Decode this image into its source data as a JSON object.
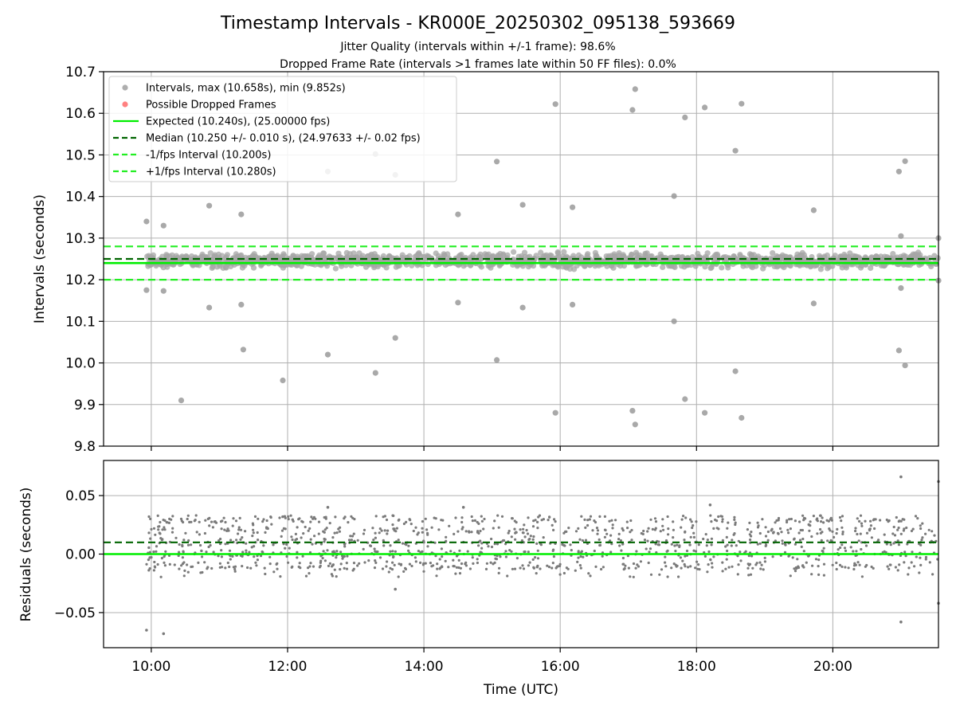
{
  "chart_data": [
    {
      "type": "scatter",
      "title": "Timestamp Intervals - KR000E_20250302_095138_593669",
      "subtitle_lines": [
        "Jitter Quality (intervals within +/-1 frame): 98.6%",
        "Dropped Frame Rate (intervals >1 frames late within 50 FF files): 0.0%"
      ],
      "ylabel": "Intervals (seconds)",
      "xlim_hours": [
        9.3,
        21.55
      ],
      "ylim": [
        9.8,
        10.7
      ],
      "yticks": [
        "9.8",
        "9.9",
        "10.0",
        "10.1",
        "10.2",
        "10.3",
        "10.4",
        "10.5",
        "10.6",
        "10.7"
      ],
      "ytick_values": [
        9.8,
        9.9,
        10.0,
        10.1,
        10.2,
        10.3,
        10.4,
        10.5,
        10.6,
        10.7
      ],
      "grid": true,
      "legend_position": "top-left",
      "legend": [
        {
          "label": "Intervals, max (10.658s), min (9.852s)",
          "style": "marker",
          "color": "#a0a0a0"
        },
        {
          "label": "Possible Dropped Frames",
          "style": "marker",
          "color": "#ff6b6b"
        },
        {
          "label": "Expected (10.240s), (25.00000 fps)",
          "style": "solid",
          "color": "#00ee00"
        },
        {
          "label": "Median (10.250 +/- 0.010 s), (24.97633 +/- 0.02 fps)",
          "style": "dashed",
          "color": "#006400"
        },
        {
          "label": "-1/fps Interval (10.200s)",
          "style": "dashed",
          "color": "#22ee22"
        },
        {
          "label": "+1/fps Interval (10.280s)",
          "style": "dashed",
          "color": "#22ee22"
        }
      ],
      "lines": {
        "expected": 10.24,
        "median": 10.25,
        "minus_fps": 10.2,
        "plus_fps": 10.28
      },
      "band": {
        "x_start_hours": 9.93,
        "x_end_hours": 21.55,
        "center": 10.248,
        "low": 10.222,
        "high": 10.27
      },
      "outliers": [
        {
          "x": 9.93,
          "y": 10.34
        },
        {
          "x": 9.93,
          "y": 10.175
        },
        {
          "x": 10.18,
          "y": 10.33
        },
        {
          "x": 10.18,
          "y": 10.173
        },
        {
          "x": 10.44,
          "y": 9.91
        },
        {
          "x": 10.85,
          "y": 10.378
        },
        {
          "x": 10.85,
          "y": 10.133
        },
        {
          "x": 11.32,
          "y": 10.357
        },
        {
          "x": 11.32,
          "y": 10.14
        },
        {
          "x": 11.35,
          "y": 10.032
        },
        {
          "x": 11.93,
          "y": 9.958
        },
        {
          "x": 12.59,
          "y": 10.46
        },
        {
          "x": 12.59,
          "y": 10.02
        },
        {
          "x": 13.29,
          "y": 10.502
        },
        {
          "x": 13.29,
          "y": 9.976
        },
        {
          "x": 13.58,
          "y": 10.452
        },
        {
          "x": 13.58,
          "y": 10.06
        },
        {
          "x": 14.5,
          "y": 10.357
        },
        {
          "x": 14.5,
          "y": 10.145
        },
        {
          "x": 15.07,
          "y": 10.484
        },
        {
          "x": 15.07,
          "y": 10.007
        },
        {
          "x": 15.45,
          "y": 10.38
        },
        {
          "x": 15.45,
          "y": 10.133
        },
        {
          "x": 15.93,
          "y": 10.622
        },
        {
          "x": 15.93,
          "y": 9.88
        },
        {
          "x": 16.18,
          "y": 10.374
        },
        {
          "x": 16.18,
          "y": 10.14
        },
        {
          "x": 17.06,
          "y": 10.608
        },
        {
          "x": 17.06,
          "y": 9.885
        },
        {
          "x": 17.1,
          "y": 10.658
        },
        {
          "x": 17.1,
          "y": 9.852
        },
        {
          "x": 17.67,
          "y": 10.401
        },
        {
          "x": 17.67,
          "y": 10.1
        },
        {
          "x": 17.83,
          "y": 10.59
        },
        {
          "x": 17.83,
          "y": 9.913
        },
        {
          "x": 18.12,
          "y": 10.614
        },
        {
          "x": 18.12,
          "y": 9.88
        },
        {
          "x": 18.57,
          "y": 10.51
        },
        {
          "x": 18.57,
          "y": 9.98
        },
        {
          "x": 18.66,
          "y": 10.623
        },
        {
          "x": 18.66,
          "y": 9.868
        },
        {
          "x": 19.72,
          "y": 10.367
        },
        {
          "x": 19.72,
          "y": 10.143
        },
        {
          "x": 20.97,
          "y": 10.46
        },
        {
          "x": 20.97,
          "y": 10.03
        },
        {
          "x": 21.0,
          "y": 10.305
        },
        {
          "x": 21.0,
          "y": 10.18
        },
        {
          "x": 21.06,
          "y": 10.485
        },
        {
          "x": 21.06,
          "y": 9.994
        },
        {
          "x": 21.55,
          "y": 10.3
        },
        {
          "x": 21.55,
          "y": 10.198
        }
      ]
    },
    {
      "type": "scatter",
      "ylabel": "Residuals (seconds)",
      "xlabel": "Time (UTC)",
      "xlim_hours": [
        9.3,
        21.55
      ],
      "ylim": [
        -0.08,
        0.08
      ],
      "yticks": [
        "−0.05",
        "0.00",
        "0.05"
      ],
      "ytick_values": [
        -0.05,
        0.0,
        0.05
      ],
      "xticks": [
        "10:00",
        "12:00",
        "14:00",
        "16:00",
        "18:00",
        "20:00"
      ],
      "xtick_values_hours": [
        10,
        12,
        14,
        16,
        18,
        20
      ],
      "grid": true,
      "lines": {
        "expected": 0.0,
        "median": 0.01
      },
      "band": {
        "x_start_hours": 9.93,
        "x_end_hours": 21.55,
        "low": -0.02,
        "high": 0.03
      },
      "outliers": [
        {
          "x": 9.93,
          "y": -0.065
        },
        {
          "x": 10.18,
          "y": -0.068
        },
        {
          "x": 12.59,
          "y": 0.04
        },
        {
          "x": 13.58,
          "y": -0.03
        },
        {
          "x": 14.58,
          "y": 0.04
        },
        {
          "x": 18.2,
          "y": 0.042
        },
        {
          "x": 21.0,
          "y": 0.066
        },
        {
          "x": 21.0,
          "y": -0.058
        },
        {
          "x": 21.55,
          "y": 0.062
        },
        {
          "x": 21.55,
          "y": -0.042
        }
      ]
    }
  ]
}
